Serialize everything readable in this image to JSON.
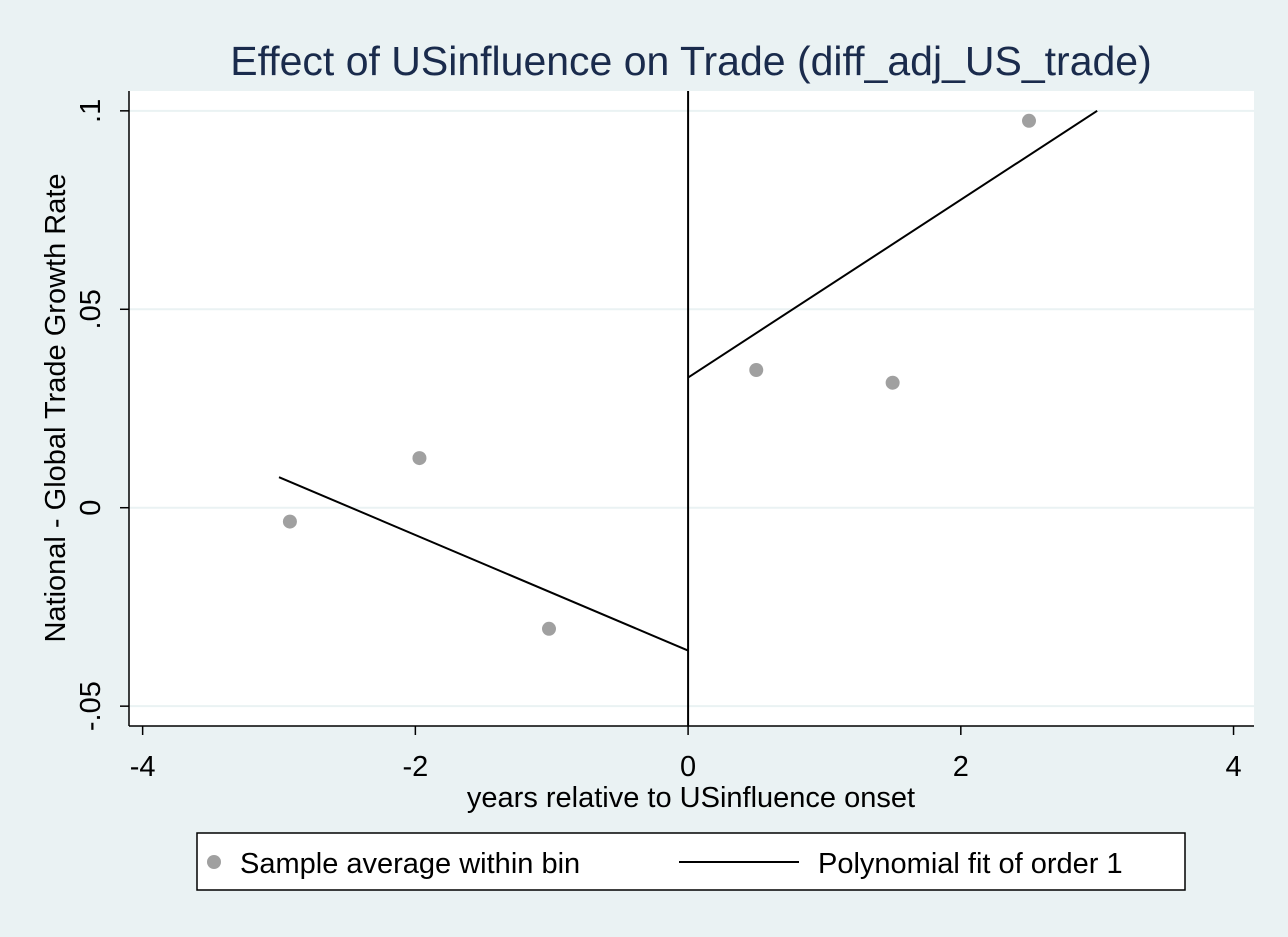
{
  "chart_data": {
    "type": "scatter",
    "title": "Effect of USinfluence on Trade (diff_adj_US_trade)",
    "xlabel": "years relative to USinfluence onset",
    "ylabel": "National - Global Trade Growth Rate",
    "xlim": [
      -4.1,
      4.15
    ],
    "ylim": [
      -0.055,
      0.105
    ],
    "xticks": [
      -4,
      -2,
      0,
      2,
      4
    ],
    "xtick_labels": [
      "-4",
      "-2",
      "0",
      "2",
      "4"
    ],
    "yticks": [
      -0.05,
      0,
      0.05,
      0.1
    ],
    "ytick_labels": [
      "-.05",
      "0",
      ".05",
      ".1"
    ],
    "grid": true,
    "threshold_x": 0,
    "series": [
      {
        "name": "Sample average within bin",
        "kind": "points",
        "color": "#a0a0a0",
        "x": [
          -2.92,
          -1.97,
          -1.02,
          0.5,
          1.5,
          2.5
        ],
        "y": [
          -0.0035,
          0.0125,
          -0.0305,
          0.0347,
          0.0315,
          0.0975
        ]
      },
      {
        "name": "Polynomial fit of order 1",
        "kind": "lines",
        "color": "#000000",
        "segments": [
          {
            "x": [
              -3,
              0
            ],
            "y": [
              0.0077,
              -0.036
            ]
          },
          {
            "x": [
              0,
              3
            ],
            "y": [
              0.0328,
              0.1
            ]
          }
        ]
      }
    ],
    "legend": {
      "position": "bottom",
      "box": true
    }
  },
  "colors": {
    "background": "#eaf2f3",
    "plot_background": "#ffffff",
    "grid": "#eaf2f3",
    "title": "#1a2b4c"
  }
}
